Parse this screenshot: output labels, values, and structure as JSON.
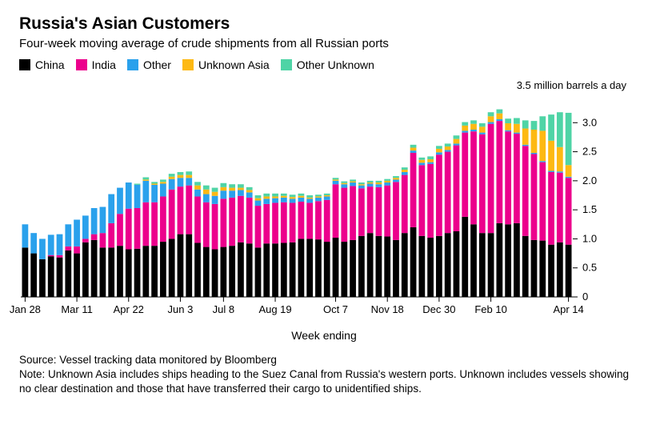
{
  "title": "Russia's Asian Customers",
  "subtitle": "Four-week moving average of crude shipments from all Russian ports",
  "legend": [
    {
      "label": "China",
      "color": "#000000"
    },
    {
      "label": "India",
      "color": "#ec008c"
    },
    {
      "label": "Other",
      "color": "#2aa1ec"
    },
    {
      "label": "Unknown Asia",
      "color": "#fdb913"
    },
    {
      "label": "Other Unknown",
      "color": "#4fd4a6"
    }
  ],
  "chart": {
    "type": "stacked-bar",
    "y_axis_title": "3.5 million barrels a day",
    "x_axis_title": "Week ending",
    "ylim": [
      0,
      3.5
    ],
    "ytick_step": 0.5,
    "yticks": [
      0,
      0.5,
      1.0,
      1.5,
      2.0,
      2.5,
      3.0
    ],
    "ytick_labels": [
      "0",
      "0.5",
      "1.0",
      "1.5",
      "2.0",
      "2.5",
      "3.0"
    ],
    "bar_width_ratio": 0.72,
    "background_color": "#ffffff",
    "axis_color": "#000000",
    "tick_color": "#000000",
    "font_size_axis": 13,
    "font_size_title": 21,
    "font_size_subtitle": 15,
    "x_ticks": [
      {
        "idx": 0,
        "label": "Jan 28"
      },
      {
        "idx": 6,
        "label": "Mar 11"
      },
      {
        "idx": 12,
        "label": "Apr 22"
      },
      {
        "idx": 18,
        "label": "Jun 3"
      },
      {
        "idx": 23,
        "label": "Jul 8"
      },
      {
        "idx": 29,
        "label": "Aug 19"
      },
      {
        "idx": 36,
        "label": "Oct 7"
      },
      {
        "idx": 42,
        "label": "Nov 18"
      },
      {
        "idx": 48,
        "label": "Dec 30"
      },
      {
        "idx": 54,
        "label": "Feb 10"
      },
      {
        "idx": 63,
        "label": "Apr 14"
      }
    ],
    "series_order": [
      "china",
      "india",
      "other",
      "unknown_asia",
      "other_unknown"
    ],
    "colors": {
      "china": "#000000",
      "india": "#ec008c",
      "other": "#2aa1ec",
      "unknown_asia": "#fdb913",
      "other_unknown": "#4fd4a6"
    },
    "bars": [
      {
        "china": 0.85,
        "india": 0.0,
        "other": 0.4,
        "unknown_asia": 0.0,
        "other_unknown": 0.0
      },
      {
        "china": 0.75,
        "india": 0.0,
        "other": 0.35,
        "unknown_asia": 0.0,
        "other_unknown": 0.0
      },
      {
        "china": 0.65,
        "india": 0.0,
        "other": 0.35,
        "unknown_asia": 0.0,
        "other_unknown": 0.0
      },
      {
        "china": 0.7,
        "india": 0.02,
        "other": 0.35,
        "unknown_asia": 0.0,
        "other_unknown": 0.0
      },
      {
        "china": 0.68,
        "india": 0.04,
        "other": 0.36,
        "unknown_asia": 0.0,
        "other_unknown": 0.0
      },
      {
        "china": 0.8,
        "india": 0.07,
        "other": 0.38,
        "unknown_asia": 0.0,
        "other_unknown": 0.0
      },
      {
        "china": 0.75,
        "india": 0.12,
        "other": 0.46,
        "unknown_asia": 0.0,
        "other_unknown": 0.0
      },
      {
        "china": 0.94,
        "india": 0.06,
        "other": 0.4,
        "unknown_asia": 0.0,
        "other_unknown": 0.0
      },
      {
        "china": 0.98,
        "india": 0.1,
        "other": 0.45,
        "unknown_asia": 0.0,
        "other_unknown": 0.0
      },
      {
        "china": 0.85,
        "india": 0.25,
        "other": 0.45,
        "unknown_asia": 0.0,
        "other_unknown": 0.0
      },
      {
        "china": 0.85,
        "india": 0.42,
        "other": 0.5,
        "unknown_asia": 0.0,
        "other_unknown": 0.0
      },
      {
        "china": 0.88,
        "india": 0.55,
        "other": 0.45,
        "unknown_asia": 0.0,
        "other_unknown": 0.0
      },
      {
        "china": 0.82,
        "india": 0.7,
        "other": 0.45,
        "unknown_asia": 0.0,
        "other_unknown": 0.0
      },
      {
        "china": 0.83,
        "india": 0.7,
        "other": 0.4,
        "unknown_asia": 0.0,
        "other_unknown": 0.02
      },
      {
        "china": 0.88,
        "india": 0.75,
        "other": 0.37,
        "unknown_asia": 0.02,
        "other_unknown": 0.04
      },
      {
        "china": 0.88,
        "india": 0.75,
        "other": 0.3,
        "unknown_asia": 0.02,
        "other_unknown": 0.03
      },
      {
        "china": 0.95,
        "india": 0.78,
        "other": 0.22,
        "unknown_asia": 0.03,
        "other_unknown": 0.04
      },
      {
        "china": 1.0,
        "india": 0.85,
        "other": 0.18,
        "unknown_asia": 0.04,
        "other_unknown": 0.05
      },
      {
        "china": 1.08,
        "india": 0.82,
        "other": 0.15,
        "unknown_asia": 0.05,
        "other_unknown": 0.05
      },
      {
        "china": 1.08,
        "india": 0.84,
        "other": 0.13,
        "unknown_asia": 0.05,
        "other_unknown": 0.06
      },
      {
        "china": 0.93,
        "india": 0.8,
        "other": 0.12,
        "unknown_asia": 0.07,
        "other_unknown": 0.06
      },
      {
        "china": 0.86,
        "india": 0.77,
        "other": 0.14,
        "unknown_asia": 0.08,
        "other_unknown": 0.07
      },
      {
        "china": 0.82,
        "india": 0.78,
        "other": 0.14,
        "unknown_asia": 0.07,
        "other_unknown": 0.07
      },
      {
        "china": 0.86,
        "india": 0.83,
        "other": 0.14,
        "unknown_asia": 0.06,
        "other_unknown": 0.07
      },
      {
        "china": 0.88,
        "india": 0.83,
        "other": 0.12,
        "unknown_asia": 0.05,
        "other_unknown": 0.06
      },
      {
        "china": 0.94,
        "india": 0.8,
        "other": 0.1,
        "unknown_asia": 0.04,
        "other_unknown": 0.06
      },
      {
        "china": 0.92,
        "india": 0.79,
        "other": 0.09,
        "unknown_asia": 0.04,
        "other_unknown": 0.05
      },
      {
        "china": 0.85,
        "india": 0.72,
        "other": 0.09,
        "unknown_asia": 0.04,
        "other_unknown": 0.05
      },
      {
        "china": 0.92,
        "india": 0.68,
        "other": 0.09,
        "unknown_asia": 0.04,
        "other_unknown": 0.05
      },
      {
        "china": 0.92,
        "india": 0.7,
        "other": 0.08,
        "unknown_asia": 0.03,
        "other_unknown": 0.05
      },
      {
        "china": 0.93,
        "india": 0.7,
        "other": 0.08,
        "unknown_asia": 0.03,
        "other_unknown": 0.04
      },
      {
        "china": 0.94,
        "india": 0.68,
        "other": 0.07,
        "unknown_asia": 0.03,
        "other_unknown": 0.04
      },
      {
        "china": 1.0,
        "india": 0.64,
        "other": 0.07,
        "unknown_asia": 0.03,
        "other_unknown": 0.04
      },
      {
        "china": 1.0,
        "india": 0.62,
        "other": 0.07,
        "unknown_asia": 0.02,
        "other_unknown": 0.04
      },
      {
        "china": 0.99,
        "india": 0.66,
        "other": 0.06,
        "unknown_asia": 0.02,
        "other_unknown": 0.03
      },
      {
        "china": 0.95,
        "india": 0.72,
        "other": 0.06,
        "unknown_asia": 0.02,
        "other_unknown": 0.03
      },
      {
        "china": 1.02,
        "india": 0.92,
        "other": 0.06,
        "unknown_asia": 0.02,
        "other_unknown": 0.03
      },
      {
        "china": 0.95,
        "india": 0.93,
        "other": 0.06,
        "unknown_asia": 0.02,
        "other_unknown": 0.03
      },
      {
        "china": 0.98,
        "india": 0.93,
        "other": 0.06,
        "unknown_asia": 0.02,
        "other_unknown": 0.03
      },
      {
        "china": 1.05,
        "india": 0.82,
        "other": 0.05,
        "unknown_asia": 0.02,
        "other_unknown": 0.03
      },
      {
        "china": 1.1,
        "india": 0.8,
        "other": 0.05,
        "unknown_asia": 0.02,
        "other_unknown": 0.03
      },
      {
        "china": 1.05,
        "india": 0.84,
        "other": 0.05,
        "unknown_asia": 0.03,
        "other_unknown": 0.03
      },
      {
        "china": 1.04,
        "india": 0.88,
        "other": 0.05,
        "unknown_asia": 0.03,
        "other_unknown": 0.03
      },
      {
        "china": 0.98,
        "india": 1.0,
        "other": 0.04,
        "unknown_asia": 0.03,
        "other_unknown": 0.03
      },
      {
        "china": 1.1,
        "india": 1.0,
        "other": 0.05,
        "unknown_asia": 0.04,
        "other_unknown": 0.04
      },
      {
        "china": 1.2,
        "india": 1.28,
        "other": 0.04,
        "unknown_asia": 0.05,
        "other_unknown": 0.05
      },
      {
        "china": 1.05,
        "india": 1.22,
        "other": 0.04,
        "unknown_asia": 0.05,
        "other_unknown": 0.04
      },
      {
        "china": 1.02,
        "india": 1.27,
        "other": 0.03,
        "unknown_asia": 0.05,
        "other_unknown": 0.05
      },
      {
        "china": 1.05,
        "india": 1.4,
        "other": 0.04,
        "unknown_asia": 0.06,
        "other_unknown": 0.05
      },
      {
        "china": 1.1,
        "india": 1.4,
        "other": 0.03,
        "unknown_asia": 0.06,
        "other_unknown": 0.05
      },
      {
        "china": 1.13,
        "india": 1.48,
        "other": 0.03,
        "unknown_asia": 0.08,
        "other_unknown": 0.06
      },
      {
        "china": 1.38,
        "india": 1.45,
        "other": 0.03,
        "unknown_asia": 0.09,
        "other_unknown": 0.06
      },
      {
        "china": 1.25,
        "india": 1.6,
        "other": 0.03,
        "unknown_asia": 0.1,
        "other_unknown": 0.06
      },
      {
        "china": 1.1,
        "india": 1.7,
        "other": 0.03,
        "unknown_asia": 0.1,
        "other_unknown": 0.06
      },
      {
        "china": 1.1,
        "india": 1.88,
        "other": 0.03,
        "unknown_asia": 0.1,
        "other_unknown": 0.07
      },
      {
        "china": 1.27,
        "india": 1.76,
        "other": 0.03,
        "unknown_asia": 0.1,
        "other_unknown": 0.07
      },
      {
        "china": 1.25,
        "india": 1.6,
        "other": 0.02,
        "unknown_asia": 0.12,
        "other_unknown": 0.08
      },
      {
        "china": 1.27,
        "india": 1.54,
        "other": 0.02,
        "unknown_asia": 0.15,
        "other_unknown": 0.1
      },
      {
        "china": 1.05,
        "india": 1.55,
        "other": 0.02,
        "unknown_asia": 0.28,
        "other_unknown": 0.14
      },
      {
        "china": 0.98,
        "india": 1.48,
        "other": 0.02,
        "unknown_asia": 0.4,
        "other_unknown": 0.15
      },
      {
        "china": 0.97,
        "india": 1.35,
        "other": 0.02,
        "unknown_asia": 0.52,
        "other_unknown": 0.25
      },
      {
        "china": 0.9,
        "india": 1.25,
        "other": 0.02,
        "unknown_asia": 0.52,
        "other_unknown": 0.45
      },
      {
        "china": 0.94,
        "india": 1.2,
        "other": 0.02,
        "unknown_asia": 0.42,
        "other_unknown": 0.6
      },
      {
        "china": 0.9,
        "india": 1.15,
        "other": 0.02,
        "unknown_asia": 0.2,
        "other_unknown": 0.9
      }
    ]
  },
  "source_line": "Source: Vessel tracking data monitored by Bloomberg",
  "note_line": "Note: Unknown Asia includes ships heading to the Suez Canal from Russia's western ports. Unknown includes vessels showing no clear destination and those that have transferred their cargo to unidentified ships."
}
